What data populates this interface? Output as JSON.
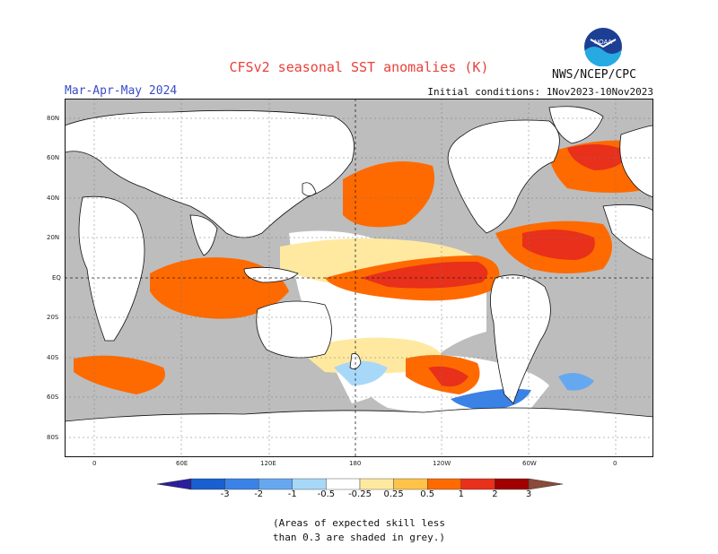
{
  "header": {
    "title": "CFSv2 seasonal SST anomalies (K)",
    "season": "Mar-Apr-May 2024",
    "initial_conditions": "Initial conditions: 1Nov2023-10Nov2023",
    "agency": "NWS/NCEP/CPC",
    "logo_text": "NOAA"
  },
  "map": {
    "longitude_labels": [
      "0",
      "60E",
      "120E",
      "180",
      "120W",
      "60W",
      "0"
    ],
    "latitude_labels": [
      "80N",
      "60N",
      "40N",
      "20N",
      "EQ",
      "20S",
      "40S",
      "60S",
      "80S"
    ]
  },
  "legend": {
    "labels": [
      "-3",
      "-2",
      "-1",
      "-0.5",
      "-0.25",
      "0.25",
      "0.5",
      "1",
      "2",
      "3"
    ],
    "colors": [
      "#2a1f9c",
      "#1a5fd0",
      "#3a82e6",
      "#66a8f0",
      "#a8d8f8",
      "#ffffff",
      "#ffe9a0",
      "#ffc34a",
      "#ff6a00",
      "#e8301b",
      "#a00000",
      "#8b4a3a"
    ],
    "note_line1": "(Areas of expected skill less",
    "note_line2": "than 0.3 are shaded in grey.)"
  },
  "colors": {
    "grey_mask": "#bdbdbd",
    "land": "#ffffff",
    "title": "#e8413a",
    "season": "#3b4cc8"
  }
}
